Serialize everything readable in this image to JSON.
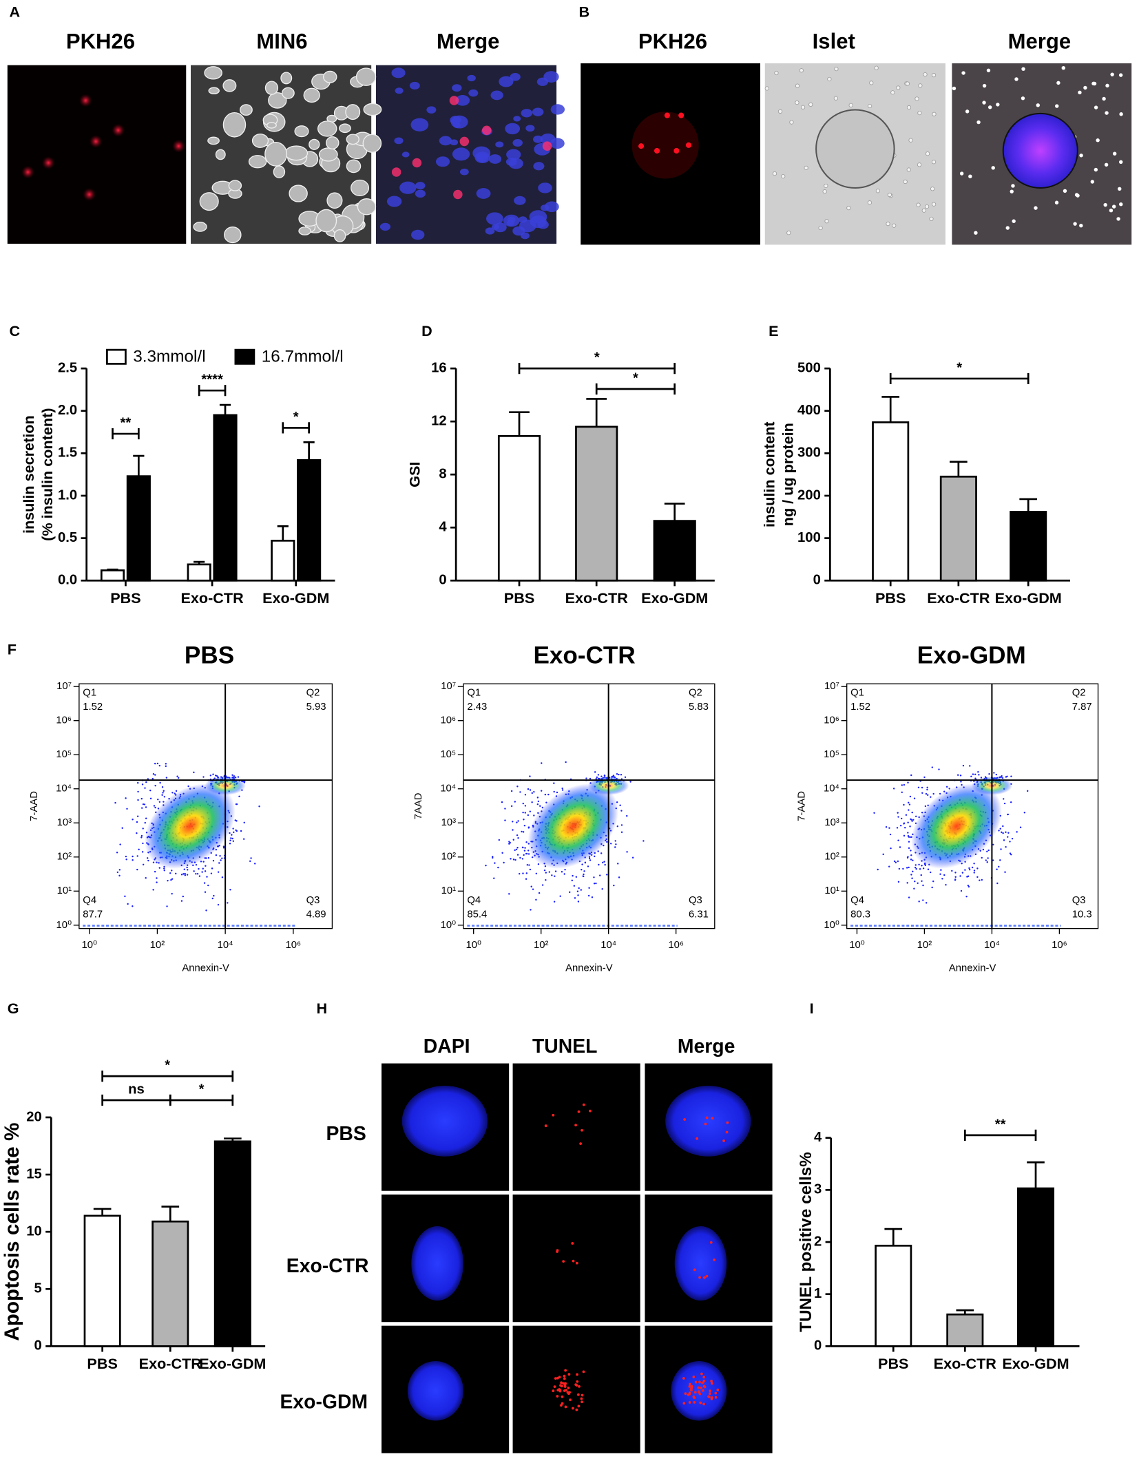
{
  "panel_labels": [
    "A",
    "B",
    "C",
    "D",
    "E",
    "F",
    "G",
    "H",
    "I"
  ],
  "panel_a": {
    "titles": [
      "PKH26",
      "MIN6",
      "Merge"
    ]
  },
  "panel_b": {
    "titles": [
      "PKH26",
      "Islet",
      "Merge"
    ]
  },
  "panel_h": {
    "columns": [
      "DAPI",
      "TUNEL",
      "Merge"
    ],
    "rows": [
      "PBS",
      "Exo-CTR",
      "Exo-GDM"
    ]
  },
  "chart_data": [
    {
      "type": "grouped_bar",
      "ylabel": [
        "insulin secretion",
        "(% insulin content)"
      ],
      "categories": [
        "PBS",
        "Exo-CTR",
        "Exo-GDM"
      ],
      "series": [
        {
          "name": "3.3mmol/l",
          "color": "#ffffff",
          "values": [
            0.12,
            0.19,
            0.47
          ],
          "errors": [
            0.01,
            0.03,
            0.17
          ]
        },
        {
          "name": "16.7mmol/l",
          "color": "#000000",
          "values": [
            1.23,
            1.95,
            1.42
          ],
          "errors": [
            0.24,
            0.12,
            0.21
          ]
        }
      ],
      "ylim": [
        0,
        2.5
      ],
      "yticks": [
        {
          "value": 0,
          "label": "0.0"
        },
        {
          "value": 0.5,
          "label": "0.5"
        },
        {
          "value": 1,
          "label": "1.0"
        },
        {
          "value": 1.5,
          "label": "1.5"
        },
        {
          "value": 2,
          "label": "2.0"
        },
        {
          "value": 2.5,
          "label": "2.5"
        }
      ],
      "significance": [
        {
          "label": "**",
          "category": "PBS",
          "y": 1.73
        },
        {
          "label": "****",
          "category": "Exo-CTR",
          "y": 2.24
        },
        {
          "label": "*",
          "category": "Exo-GDM",
          "y": 1.8
        }
      ]
    },
    {
      "type": "bar",
      "ylabel": [
        "GSI"
      ],
      "categories": [
        "PBS",
        "Exo-CTR",
        "Exo-GDM"
      ],
      "values": [
        10.9,
        11.6,
        4.5
      ],
      "errors": [
        1.8,
        2.1,
        1.3
      ],
      "colors": [
        "#ffffff",
        "#b3b3b3",
        "#000000"
      ],
      "ylim": [
        0,
        16
      ],
      "yticks": [
        0,
        4,
        8,
        12,
        16
      ],
      "significance": [
        {
          "label": "*",
          "between": [
            "PBS",
            "Exo-GDM"
          ],
          "y": 16
        },
        {
          "label": "*",
          "between": [
            "Exo-CTR",
            "Exo-GDM"
          ],
          "y": 14.45
        }
      ]
    },
    {
      "type": "bar",
      "ylabel": [
        "insulin content",
        "ng / ug protein"
      ],
      "categories": [
        "PBS",
        "Exo-CTR",
        "Exo-GDM"
      ],
      "values": [
        373,
        245,
        162
      ],
      "errors": [
        60,
        35,
        30
      ],
      "colors": [
        "#ffffff",
        "#b3b3b3",
        "#000000"
      ],
      "ylim": [
        0,
        500
      ],
      "yticks": [
        0,
        100,
        200,
        300,
        400,
        500
      ],
      "significance": [
        {
          "label": "*",
          "between": [
            "PBS",
            "Exo-GDM"
          ],
          "y": 476
        }
      ]
    },
    {
      "type": "flow",
      "title": "PBS",
      "xlabel": "Annexin-V",
      "ylabel": "7-AAD",
      "log": true,
      "xlim": [
        0.5,
        14000000
      ],
      "ylim": [
        0.8,
        12000000
      ],
      "gate": [
        10000,
        18000
      ],
      "xticks": [
        {
          "value": 1,
          "label": "10⁰"
        },
        {
          "value": 100,
          "label": "10²"
        },
        {
          "value": 10000,
          "label": "10⁴"
        },
        {
          "value": 1000000,
          "label": "10⁶"
        }
      ],
      "yticks": [
        {
          "value": 1,
          "label": "10⁰"
        },
        {
          "value": 10,
          "label": "10¹"
        },
        {
          "value": 100,
          "label": "10²"
        },
        {
          "value": 1000,
          "label": "10³"
        },
        {
          "value": 10000,
          "label": "10⁴"
        },
        {
          "value": 100000,
          "label": "10⁵"
        },
        {
          "value": 1000000,
          "label": "10⁶"
        },
        {
          "value": 10000000,
          "label": "10⁷"
        }
      ],
      "quadrants": [
        {
          "name": "Q1",
          "value": 1.52
        },
        {
          "name": "Q2",
          "value": 5.93
        },
        {
          "name": "Q4",
          "value": 87.7
        },
        {
          "name": "Q3",
          "value": 4.89
        }
      ]
    },
    {
      "type": "flow",
      "title": "Exo-CTR",
      "xlabel": "Annexin-V",
      "ylabel": "7AAD",
      "log": true,
      "xlim": [
        0.5,
        14000000
      ],
      "ylim": [
        0.8,
        12000000
      ],
      "gate": [
        10000,
        18000
      ],
      "xticks": [
        {
          "value": 1,
          "label": "10⁰"
        },
        {
          "value": 100,
          "label": "10²"
        },
        {
          "value": 10000,
          "label": "10⁴"
        },
        {
          "value": 1000000,
          "label": "10⁶"
        }
      ],
      "yticks": [
        {
          "value": 1,
          "label": "10⁰"
        },
        {
          "value": 10,
          "label": "10¹"
        },
        {
          "value": 100,
          "label": "10²"
        },
        {
          "value": 1000,
          "label": "10³"
        },
        {
          "value": 10000,
          "label": "10⁴"
        },
        {
          "value": 100000,
          "label": "10⁵"
        },
        {
          "value": 1000000,
          "label": "10⁶"
        },
        {
          "value": 10000000,
          "label": "10⁷"
        }
      ],
      "quadrants": [
        {
          "name": "Q1",
          "value": 2.43
        },
        {
          "name": "Q2",
          "value": 5.83
        },
        {
          "name": "Q4",
          "value": 85.4
        },
        {
          "name": "Q3",
          "value": 6.31
        }
      ]
    },
    {
      "type": "flow",
      "title": "Exo-GDM",
      "xlabel": "Annexin-V",
      "ylabel": "7-AAD",
      "log": true,
      "xlim": [
        0.5,
        14000000
      ],
      "ylim": [
        0.8,
        12000000
      ],
      "gate": [
        10000,
        18000
      ],
      "xticks": [
        {
          "value": 1,
          "label": "10⁰"
        },
        {
          "value": 100,
          "label": "10²"
        },
        {
          "value": 10000,
          "label": "10⁴"
        },
        {
          "value": 1000000,
          "label": "10⁶"
        }
      ],
      "yticks": [
        {
          "value": 1,
          "label": "10⁰"
        },
        {
          "value": 10,
          "label": "10¹"
        },
        {
          "value": 100,
          "label": "10²"
        },
        {
          "value": 1000,
          "label": "10³"
        },
        {
          "value": 10000,
          "label": "10⁴"
        },
        {
          "value": 100000,
          "label": "10⁵"
        },
        {
          "value": 1000000,
          "label": "10⁶"
        },
        {
          "value": 10000000,
          "label": "10⁷"
        }
      ],
      "quadrants": [
        {
          "name": "Q1",
          "value": 1.52
        },
        {
          "name": "Q2",
          "value": 7.87
        },
        {
          "name": "Q4",
          "value": 80.3
        },
        {
          "name": "Q3",
          "value": 10.3
        }
      ]
    },
    {
      "type": "bar",
      "ylabel": [
        "Apoptosis cells rate %"
      ],
      "categories": [
        "PBS",
        "Exo-CTR",
        "Exo-GDM"
      ],
      "values": [
        11.4,
        10.9,
        17.9
      ],
      "errors": [
        0.6,
        1.3,
        0.25
      ],
      "colors": [
        "#ffffff",
        "#b3b3b3",
        "#000000"
      ],
      "ylim": [
        0,
        20
      ],
      "yticks": [
        0,
        5,
        10,
        15,
        20
      ],
      "significance": [
        {
          "label": "*",
          "between": [
            "PBS",
            "Exo-GDM"
          ],
          "y": 23.6
        },
        {
          "label": "ns",
          "between": [
            "PBS",
            "Exo-CTR"
          ],
          "y": 21.5
        },
        {
          "label": "*",
          "between": [
            "Exo-CTR",
            "Exo-GDM"
          ],
          "y": 21.5
        }
      ]
    },
    {
      "type": "bar",
      "ylabel": [
        "TUNEL positive cells%"
      ],
      "categories": [
        "PBS",
        "Exo-CTR",
        "Exo-GDM"
      ],
      "values": [
        1.93,
        0.61,
        3.03
      ],
      "errors": [
        0.32,
        0.08,
        0.5
      ],
      "colors": [
        "#ffffff",
        "#b3b3b3",
        "#000000"
      ],
      "ylim": [
        0,
        4
      ],
      "yticks": [
        0,
        1,
        2,
        3,
        4
      ],
      "significance": [
        {
          "label": "**",
          "between": [
            "Exo-CTR",
            "Exo-GDM"
          ],
          "y": 4.05
        }
      ]
    }
  ]
}
